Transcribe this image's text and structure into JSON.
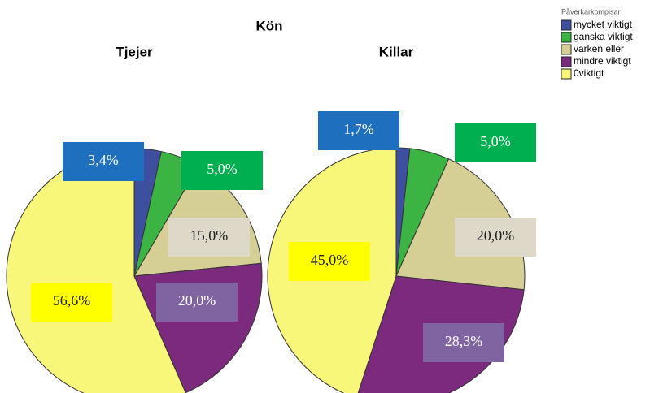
{
  "title": "Kön",
  "legend": {
    "title": "Påverkarkompisar",
    "labels": [
      "mycket viktigt",
      "ganska viktigt",
      "varken eller",
      "mindre viktigt",
      "0viktigt"
    ],
    "colors": [
      "#3e4fa0",
      "#3cb443",
      "#d5cf95",
      "#7b2a7e",
      "#f9f77a"
    ]
  },
  "chart_data": [
    {
      "type": "pie",
      "title": "Tjejer",
      "values": [
        3.4,
        5.0,
        15.0,
        20.0,
        56.6
      ],
      "value_labels": [
        "3,4%",
        "5,0%",
        "15,0%",
        "20,0%",
        "56,6%"
      ]
    },
    {
      "type": "pie",
      "title": "Killar",
      "values": [
        1.7,
        5.0,
        20.0,
        28.3,
        45.0
      ],
      "value_labels": [
        "1,7%",
        "5,0%",
        "20,0%",
        "28,3%",
        "45,0%"
      ]
    }
  ]
}
